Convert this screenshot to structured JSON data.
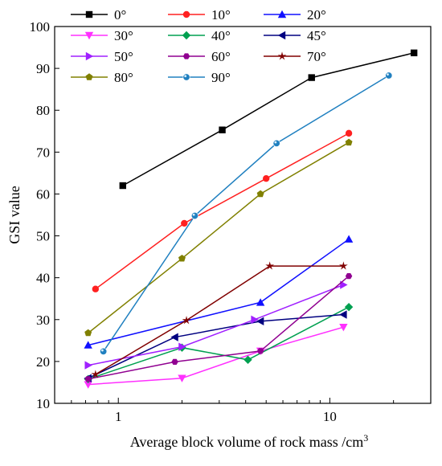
{
  "chart_data": {
    "type": "line",
    "xlabel": "Average block volume of rock mass /cm",
    "xlabel_superscript": "3",
    "ylabel": "GSI value",
    "x_scale": "log",
    "xlim": [
      0.5,
      30
    ],
    "ylim": [
      10,
      100
    ],
    "x_tick_labels": [
      {
        "value": 1,
        "label": "1"
      },
      {
        "value": 10,
        "label": "10"
      }
    ],
    "y_ticks": [
      10,
      20,
      30,
      40,
      50,
      60,
      70,
      80,
      90,
      100
    ],
    "grid": false,
    "legend_position": "top-left",
    "series": [
      {
        "name": "0°",
        "color": "#000000",
        "marker": "square",
        "points": [
          [
            1.05,
            62
          ],
          [
            3.1,
            75.3
          ],
          [
            8.2,
            87.8
          ],
          [
            25,
            93.7
          ]
        ]
      },
      {
        "name": "10°",
        "color": "#ff2020",
        "marker": "circle",
        "points": [
          [
            0.78,
            37.3
          ],
          [
            2.05,
            53
          ],
          [
            5.0,
            63.7
          ],
          [
            12.3,
            74.5
          ]
        ]
      },
      {
        "name": "20°",
        "color": "#1010ff",
        "marker": "triangle-up",
        "points": [
          [
            0.72,
            23.9
          ],
          [
            4.7,
            34.1
          ],
          [
            12.3,
            49.2
          ]
        ]
      },
      {
        "name": "30°",
        "color": "#ff30ff",
        "marker": "triangle-down",
        "points": [
          [
            0.72,
            14.5
          ],
          [
            2.0,
            16
          ],
          [
            4.7,
            22.5
          ],
          [
            11.6,
            28.2
          ]
        ]
      },
      {
        "name": "40°",
        "color": "#00a050",
        "marker": "diamond",
        "points": [
          [
            0.72,
            15.8
          ],
          [
            2.0,
            23.3
          ],
          [
            4.1,
            20.4
          ],
          [
            12.3,
            33
          ]
        ]
      },
      {
        "name": "45°",
        "color": "#000080",
        "marker": "triangle-left",
        "points": [
          [
            0.72,
            16
          ],
          [
            1.85,
            25.8
          ],
          [
            4.7,
            29.6
          ],
          [
            11.6,
            31.2
          ]
        ]
      },
      {
        "name": "50°",
        "color": "#a020ff",
        "marker": "triangle-right",
        "points": [
          [
            0.72,
            19.1
          ],
          [
            2.0,
            23.5
          ],
          [
            4.4,
            30
          ],
          [
            11.6,
            38.3
          ]
        ]
      },
      {
        "name": "60°",
        "color": "#900090",
        "marker": "hexagon",
        "points": [
          [
            0.72,
            15.8
          ],
          [
            1.85,
            19.9
          ],
          [
            4.7,
            22.5
          ],
          [
            12.3,
            40.4
          ]
        ]
      },
      {
        "name": "70°",
        "color": "#800000",
        "marker": "star",
        "points": [
          [
            0.78,
            16.9
          ],
          [
            2.1,
            29.8
          ],
          [
            5.2,
            42.8
          ],
          [
            11.6,
            42.8
          ]
        ]
      },
      {
        "name": "80°",
        "color": "#808000",
        "marker": "pentagon",
        "points": [
          [
            0.72,
            26.8
          ],
          [
            2.0,
            44.6
          ],
          [
            4.7,
            60
          ],
          [
            12.3,
            72.3
          ]
        ]
      },
      {
        "name": "90°",
        "color": "#2080c0",
        "marker": "sphere",
        "points": [
          [
            0.85,
            22.4
          ],
          [
            2.3,
            54.8
          ],
          [
            5.6,
            72.1
          ],
          [
            19,
            88.3
          ]
        ]
      }
    ]
  }
}
